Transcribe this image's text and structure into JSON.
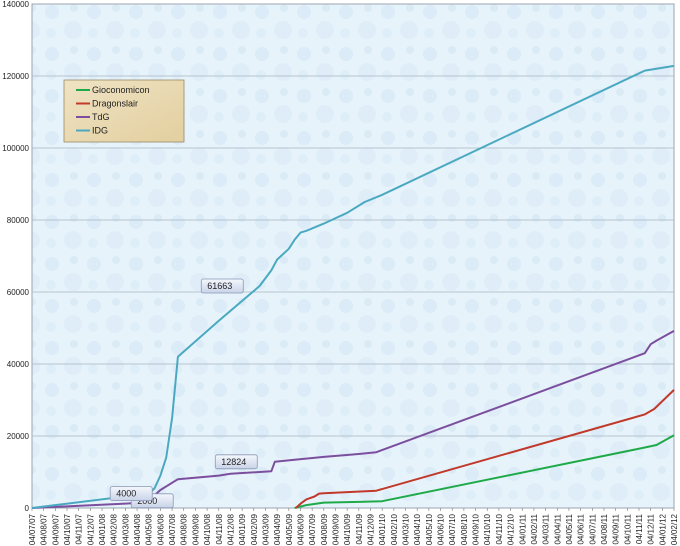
{
  "chart_data": {
    "type": "line",
    "title": "",
    "xlabel": "",
    "ylabel": "",
    "ylim": [
      0,
      140000
    ],
    "yticks": [
      0,
      20000,
      40000,
      60000,
      80000,
      100000,
      120000,
      140000
    ],
    "xticks": [
      "04/07/07",
      "04/08/07",
      "04/09/07",
      "04/10/07",
      "04/11/07",
      "04/12/07",
      "04/01/08",
      "04/02/08",
      "04/03/08",
      "04/04/08",
      "04/05/08",
      "04/06/08",
      "04/07/08",
      "04/08/08",
      "04/09/08",
      "04/10/08",
      "04/11/08",
      "04/12/08",
      "04/01/09",
      "04/02/09",
      "04/03/09",
      "04/04/09",
      "04/05/09",
      "04/06/09",
      "04/07/09",
      "04/08/09",
      "04/09/09",
      "04/10/09",
      "04/11/09",
      "04/12/09",
      "04/01/10",
      "04/02/10",
      "04/03/10",
      "04/04/10",
      "04/05/10",
      "04/06/10",
      "04/07/10",
      "04/08/10",
      "04/09/10",
      "04/10/10",
      "04/11/10",
      "04/12/10",
      "04/01/11",
      "04/02/11",
      "04/03/11",
      "04/04/11",
      "04/05/11",
      "04/06/11",
      "04/07/11",
      "04/08/11",
      "04/09/11",
      "04/10/11",
      "04/11/11",
      "04/12/11",
      "04/01/12",
      "04/02/12"
    ],
    "grid": true,
    "legend_position": "top-left",
    "series": [
      {
        "name": "Gioconomicon",
        "color": "#1faa4a",
        "x": [
          0,
          22.5,
          23.5,
          25,
          28,
          30,
          52.5,
          53.5,
          55
        ],
        "y": [
          null,
          0,
          800,
          1500,
          1700,
          1900,
          16800,
          17500,
          20200
        ]
      },
      {
        "name": "Dragonslair",
        "color": "#c0392b",
        "x": [
          0,
          22.6,
          23,
          23.5,
          24.2,
          24.6,
          25,
          29.5,
          52.5,
          53.3,
          55
        ],
        "y": [
          null,
          0,
          1200,
          2400,
          3200,
          4000,
          4100,
          4800,
          26000,
          27500,
          32800
        ]
      },
      {
        "name": "TdG",
        "color": "#7b4f9e",
        "x": [
          0,
          9.8,
          11,
          12.5,
          16,
          17,
          20.5,
          20.8,
          22.5,
          25,
          28,
          29.5,
          52.5,
          53,
          53.5,
          55
        ],
        "y": [
          0,
          1500,
          5000,
          8000,
          9000,
          9500,
          10200,
          12824,
          13400,
          14200,
          15000,
          15500,
          43000,
          45500,
          46500,
          49200
        ],
        "labels": [
          {
            "text": "2000",
            "x": 10.3,
            "y": 2000
          },
          {
            "text": "12824",
            "x": 17.5,
            "y": 12824
          }
        ]
      },
      {
        "name": "IDG",
        "color": "#4aa9c1",
        "x": [
          0,
          9.5,
          10,
          10.5,
          11,
          11.5,
          12,
          12.5,
          16,
          19.5,
          20.5,
          21,
          22,
          22.5,
          23,
          23.5,
          25,
          27,
          28.5,
          30,
          52.5,
          55
        ],
        "y": [
          0,
          3800,
          4000,
          5500,
          9000,
          14000,
          25000,
          42000,
          52000,
          61663,
          66000,
          69000,
          72000,
          74500,
          76500,
          77000,
          79000,
          82000,
          85000,
          87000,
          121500,
          122800
        ],
        "labels": [
          {
            "text": "4000",
            "x": 8.5,
            "y": 4000
          },
          {
            "text": "61663",
            "x": 16.3,
            "y": 61663
          }
        ]
      }
    ]
  }
}
